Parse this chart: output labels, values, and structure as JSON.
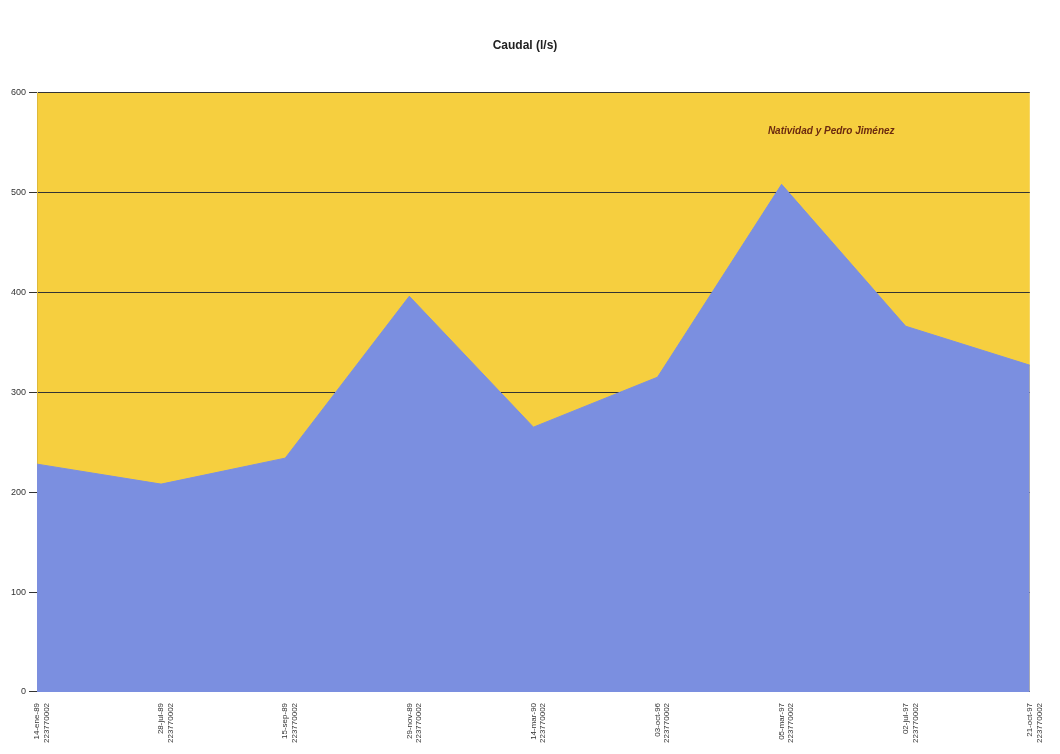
{
  "chart_data": {
    "type": "area",
    "title": "Caudal (l/s)",
    "categories": [
      "14-ene-89\n223770002",
      "28-jul-89\n223770002",
      "15-sep-89\n223770002",
      "29-nov-89\n223770002",
      "14-mar-90\n223770002",
      "03-oct-96\n223770002",
      "05-mar-97\n223770002",
      "02-jul-97\n223770002",
      "21-oct-97\n223770002"
    ],
    "series": [
      {
        "color": "#7b8fe0",
        "values": [
          228,
          208,
          234,
          396,
          265,
          315,
          508,
          366,
          327
        ]
      }
    ],
    "bands": [
      {
        "axis": "y",
        "from": 0,
        "to": 600,
        "color": "#f6cf3f"
      }
    ],
    "ylim": [
      0,
      600
    ],
    "yticks": [
      0,
      100,
      200,
      300,
      400,
      500,
      600
    ],
    "grid": "y",
    "legend": false,
    "annotations": [
      "Natividad y Pedro Jiménez"
    ]
  }
}
